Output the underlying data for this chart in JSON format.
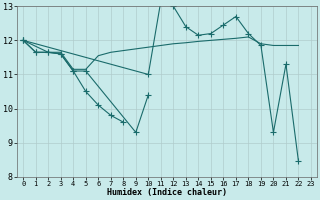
{
  "xlabel": "Humidex (Indice chaleur)",
  "bg_color": "#c8eaea",
  "grid_color": "#b0cccc",
  "line_color": "#1a6b6b",
  "xlim": [
    -0.5,
    23.5
  ],
  "ylim": [
    8,
    13
  ],
  "xticks": [
    0,
    1,
    2,
    3,
    4,
    5,
    6,
    7,
    8,
    9,
    10,
    11,
    12,
    13,
    14,
    15,
    16,
    17,
    18,
    19,
    20,
    21,
    22,
    23
  ],
  "yticks": [
    8,
    9,
    10,
    11,
    12,
    13
  ],
  "series1_x": [
    0,
    1,
    2,
    3,
    4,
    5,
    9,
    10
  ],
  "series1_y": [
    12.0,
    11.65,
    11.65,
    11.6,
    11.1,
    11.1,
    9.3,
    10.4
  ],
  "series2_x": [
    0,
    2,
    3,
    4,
    5,
    6,
    7,
    8,
    9,
    10,
    11,
    12,
    13,
    14,
    15,
    16,
    17,
    18,
    19,
    20,
    21,
    22
  ],
  "series2_y": [
    12.0,
    11.65,
    11.65,
    11.15,
    11.15,
    11.55,
    11.65,
    11.7,
    11.75,
    11.8,
    11.85,
    11.9,
    11.93,
    11.97,
    12.0,
    12.03,
    12.06,
    12.1,
    11.9,
    11.85,
    11.85,
    11.85
  ],
  "series3_x": [
    0,
    1,
    2,
    3,
    4,
    5,
    6,
    7,
    8
  ],
  "series3_y": [
    12.0,
    11.65,
    11.65,
    11.6,
    11.1,
    10.5,
    10.1,
    9.8,
    9.6
  ],
  "series4_x": [
    0,
    10,
    11,
    12,
    13,
    14,
    15,
    16,
    17,
    18,
    19,
    20,
    21,
    22
  ],
  "series4_y": [
    12.0,
    11.0,
    13.15,
    13.0,
    12.4,
    12.15,
    12.2,
    12.45,
    12.7,
    12.2,
    11.85,
    9.3,
    11.3,
    8.45
  ]
}
